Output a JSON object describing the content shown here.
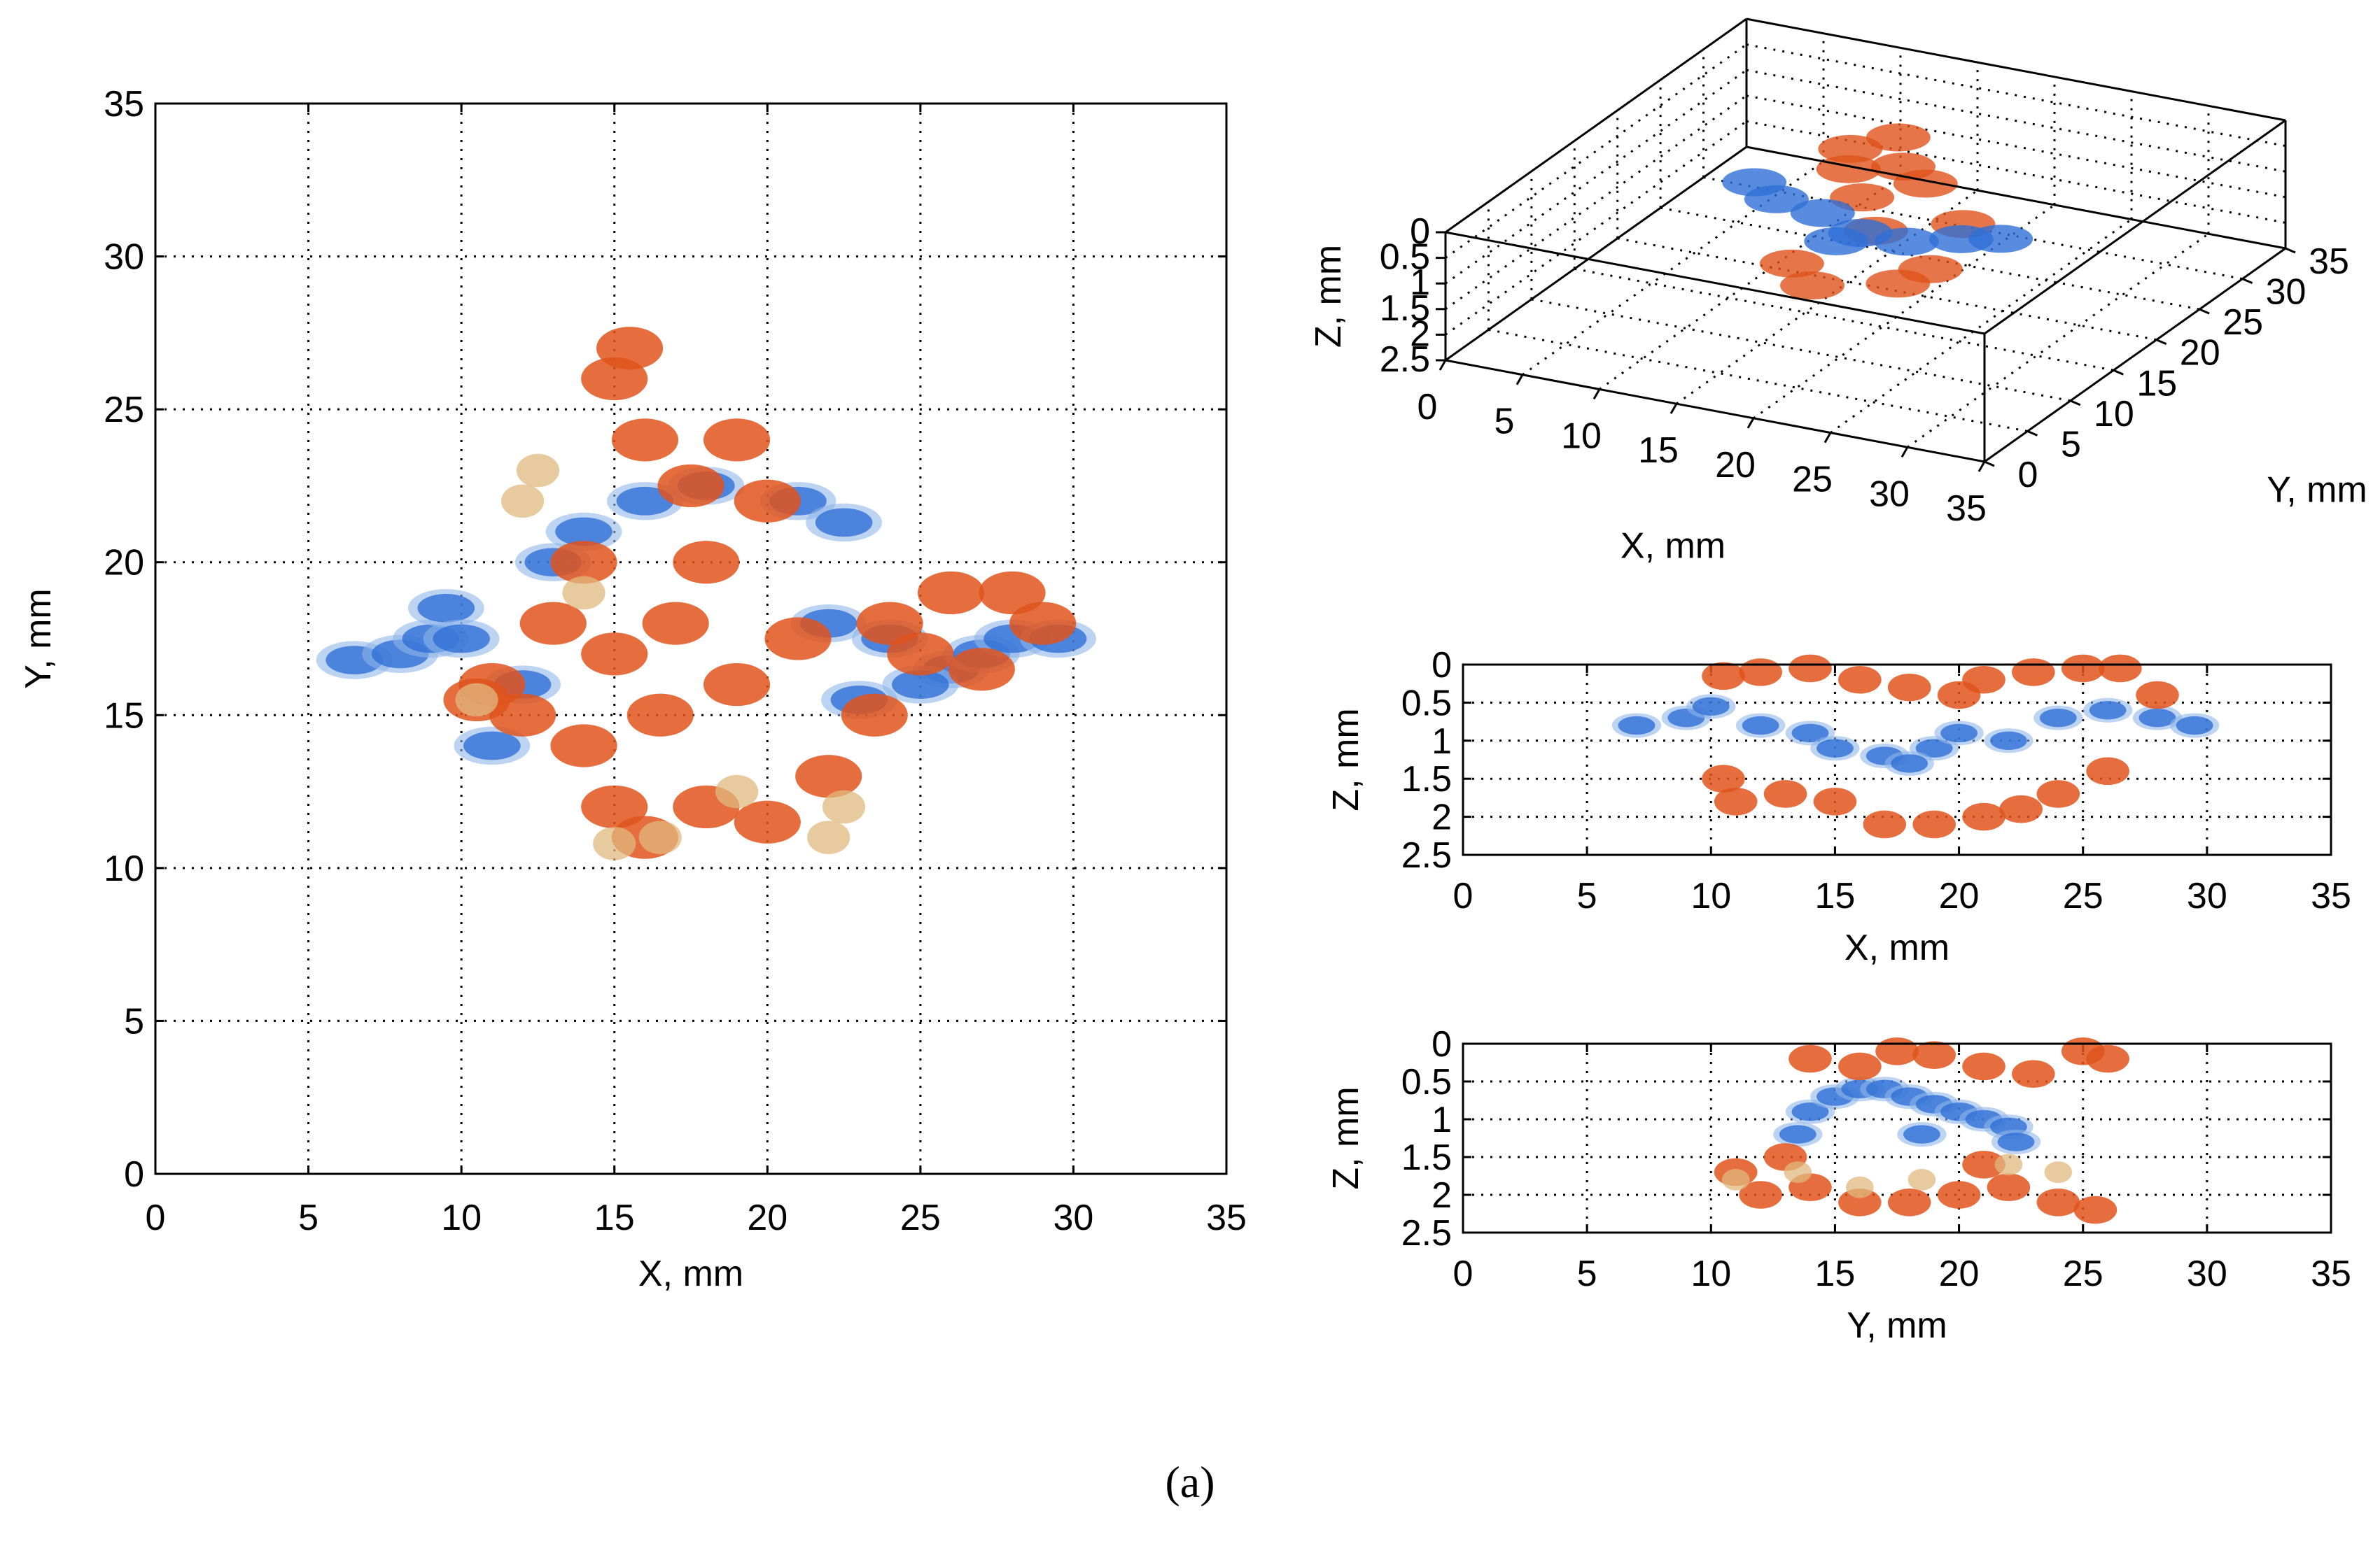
{
  "caption": "(a)",
  "colors": {
    "blue": "#2f6fd6",
    "light_blue": "#8fb6ea",
    "orange": "#e0541c",
    "tan": "#e0b87f"
  },
  "chart_data": [
    {
      "type": "scatter",
      "panel": "xy-projection",
      "xlabel": "X, mm",
      "ylabel": "Y, mm",
      "xlim": [
        0,
        35
      ],
      "ylim": [
        0,
        35
      ],
      "xticks": [
        "0",
        "5",
        "10",
        "15",
        "20",
        "25",
        "30",
        "35"
      ],
      "yticks": [
        "0",
        "5",
        "10",
        "15",
        "20",
        "25",
        "30",
        "35"
      ],
      "grid": true,
      "series": [
        {
          "color": "blue",
          "points": [
            [
              6.5,
              16.8
            ],
            [
              8,
              17
            ],
            [
              9,
              17.5
            ],
            [
              9.5,
              18.5
            ],
            [
              10,
              17.5
            ],
            [
              11,
              14
            ],
            [
              12,
              16
            ],
            [
              13,
              20
            ],
            [
              14,
              21
            ],
            [
              16,
              22
            ],
            [
              18,
              22.5
            ],
            [
              21,
              22
            ],
            [
              22.5,
              21.3
            ],
            [
              22,
              18
            ],
            [
              24,
              17.5
            ],
            [
              26,
              16.5
            ],
            [
              27,
              17
            ],
            [
              28,
              17.5
            ],
            [
              29.5,
              17.5
            ],
            [
              25,
              16
            ],
            [
              23,
              15.5
            ]
          ]
        },
        {
          "color": "orange",
          "points": [
            [
              15,
              26
            ],
            [
              15.5,
              27
            ],
            [
              16,
              24
            ],
            [
              17.5,
              22.5
            ],
            [
              19,
              24
            ],
            [
              20,
              22
            ],
            [
              18,
              20
            ],
            [
              17,
              18
            ],
            [
              15,
              17
            ],
            [
              13,
              18
            ],
            [
              11,
              16
            ],
            [
              10.5,
              15.5
            ],
            [
              12,
              15
            ],
            [
              14,
              14
            ],
            [
              15,
              12
            ],
            [
              16,
              11
            ],
            [
              18,
              12
            ],
            [
              20,
              11.5
            ],
            [
              22,
              13
            ],
            [
              23.5,
              15
            ],
            [
              24,
              18
            ],
            [
              26,
              19
            ],
            [
              28,
              19
            ],
            [
              29,
              18
            ],
            [
              27,
              16.5
            ],
            [
              25,
              17
            ],
            [
              21,
              17.5
            ],
            [
              19,
              16
            ],
            [
              16.5,
              15
            ],
            [
              14,
              20
            ]
          ]
        },
        {
          "color": "tan",
          "points": [
            [
              12,
              22
            ],
            [
              12.5,
              23
            ],
            [
              14,
              19
            ],
            [
              10.5,
              15.5
            ],
            [
              15,
              10.8
            ],
            [
              16.5,
              11
            ],
            [
              22,
              11
            ],
            [
              22.5,
              12
            ],
            [
              19,
              12.5
            ]
          ]
        }
      ]
    },
    {
      "type": "scatter",
      "panel": "3d-view",
      "xlabel": "X, mm",
      "ylabel": "Y, mm",
      "zlabel": "Z, mm",
      "xlim": [
        0,
        35
      ],
      "ylim": [
        0,
        35
      ],
      "zlim": [
        0,
        2.5
      ],
      "xticks": [
        "0",
        "5",
        "10",
        "15",
        "20",
        "25",
        "30",
        "35"
      ],
      "yticks": [
        "0",
        "5",
        "10",
        "15",
        "20",
        "25",
        "30",
        "35"
      ],
      "zticks": [
        "0",
        "0.5",
        "1",
        "1.5",
        "2",
        "2.5"
      ],
      "grid": true
    },
    {
      "type": "scatter",
      "panel": "xz-projection",
      "xlabel": "X, mm",
      "ylabel": "Z, mm",
      "xlim": [
        0,
        35
      ],
      "ylim": [
        0,
        2.5
      ],
      "y_reversed": true,
      "xticks": [
        "0",
        "5",
        "10",
        "15",
        "20",
        "25",
        "30",
        "35"
      ],
      "yticks": [
        "0",
        "0.5",
        "1",
        "1.5",
        "2",
        "2.5"
      ],
      "grid": true,
      "series": [
        {
          "color": "blue",
          "points": [
            [
              7,
              0.8
            ],
            [
              9,
              0.7
            ],
            [
              10,
              0.55
            ],
            [
              12,
              0.8
            ],
            [
              14,
              0.9
            ],
            [
              15,
              1.1
            ],
            [
              17,
              1.2
            ],
            [
              19,
              1.1
            ],
            [
              20,
              0.9
            ],
            [
              22,
              1.0
            ],
            [
              24,
              0.7
            ],
            [
              26,
              0.6
            ],
            [
              28,
              0.7
            ],
            [
              29.5,
              0.8
            ],
            [
              18,
              1.3
            ]
          ]
        },
        {
          "color": "orange",
          "points": [
            [
              10.5,
              0.15
            ],
            [
              12,
              0.1
            ],
            [
              14,
              0.05
            ],
            [
              16,
              0.2
            ],
            [
              18,
              0.3
            ],
            [
              20,
              0.4
            ],
            [
              21,
              0.2
            ],
            [
              23,
              0.1
            ],
            [
              25,
              0.05
            ],
            [
              26.5,
              0.05
            ],
            [
              28,
              0.4
            ],
            [
              11,
              1.8
            ],
            [
              13,
              1.7
            ],
            [
              15,
              1.8
            ],
            [
              17,
              2.1
            ],
            [
              19,
              2.1
            ],
            [
              21,
              2.0
            ],
            [
              22.5,
              1.9
            ],
            [
              26,
              1.4
            ],
            [
              24,
              1.7
            ],
            [
              10.5,
              1.5
            ]
          ]
        }
      ]
    },
    {
      "type": "scatter",
      "panel": "yz-projection",
      "xlabel": "Y, mm",
      "ylabel": "Z, mm",
      "xlim": [
        0,
        35
      ],
      "ylim": [
        0,
        2.5
      ],
      "y_reversed": true,
      "xticks": [
        "0",
        "5",
        "10",
        "15",
        "20",
        "25",
        "30",
        "35"
      ],
      "yticks": [
        "0",
        "0.5",
        "1",
        "1.5",
        "2",
        "2.5"
      ],
      "grid": true,
      "series": [
        {
          "color": "blue",
          "points": [
            [
              13.5,
              1.2
            ],
            [
              14,
              0.9
            ],
            [
              15,
              0.7
            ],
            [
              16,
              0.6
            ],
            [
              17,
              0.6
            ],
            [
              18,
              0.7
            ],
            [
              19,
              0.8
            ],
            [
              20,
              0.9
            ],
            [
              21,
              1.0
            ],
            [
              22,
              1.1
            ],
            [
              22.3,
              1.3
            ],
            [
              18.5,
              1.2
            ]
          ]
        },
        {
          "color": "orange",
          "points": [
            [
              14,
              0.2
            ],
            [
              16,
              0.3
            ],
            [
              17.5,
              0.1
            ],
            [
              19,
              0.15
            ],
            [
              21,
              0.3
            ],
            [
              23,
              0.4
            ],
            [
              25,
              0.1
            ],
            [
              26,
              0.2
            ],
            [
              11,
              1.7
            ],
            [
              12,
              2.0
            ],
            [
              14,
              1.9
            ],
            [
              16,
              2.1
            ],
            [
              18,
              2.1
            ],
            [
              20,
              2.0
            ],
            [
              22,
              1.9
            ],
            [
              24,
              2.1
            ],
            [
              25.5,
              2.2
            ],
            [
              13,
              1.5
            ],
            [
              21,
              1.6
            ]
          ]
        },
        {
          "color": "tan",
          "points": [
            [
              11,
              1.8
            ],
            [
              13.5,
              1.7
            ],
            [
              16,
              1.9
            ],
            [
              18.5,
              1.8
            ],
            [
              22,
              1.6
            ],
            [
              24,
              1.7
            ]
          ]
        }
      ]
    }
  ]
}
